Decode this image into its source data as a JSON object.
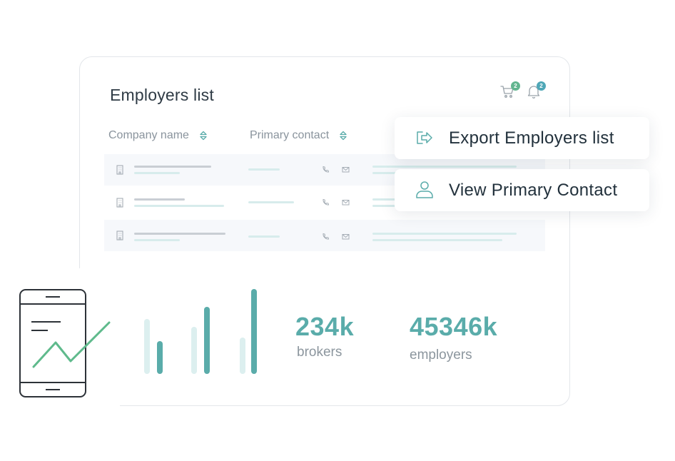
{
  "card": {
    "title": "Employers list",
    "cart_badge": "2",
    "bell_badge": "2"
  },
  "table": {
    "columns": [
      "Company name",
      "Primary contact"
    ]
  },
  "menu": {
    "export_label": "Export Employers list",
    "view_label": "View Primary Contact"
  },
  "stats": [
    {
      "value": "234k",
      "label": "brokers"
    },
    {
      "value": "45346k",
      "label": "employers"
    }
  ],
  "colors": {
    "accent": "#5aacaa",
    "accent_light": "#dcefef",
    "badge_green": "#62b58f",
    "badge_teal": "#4fa7b7",
    "text_dark": "#22313c",
    "text_muted": "#8a949d"
  },
  "icons": {
    "cart": "cart-icon",
    "bell": "bell-icon",
    "sort": "sort-icon",
    "building": "building-icon",
    "phone": "phone-icon",
    "mail": "mail-icon",
    "export": "export-icon",
    "user": "user-icon",
    "phone_device": "phone-illustration",
    "trend": "trend-line-icon"
  }
}
